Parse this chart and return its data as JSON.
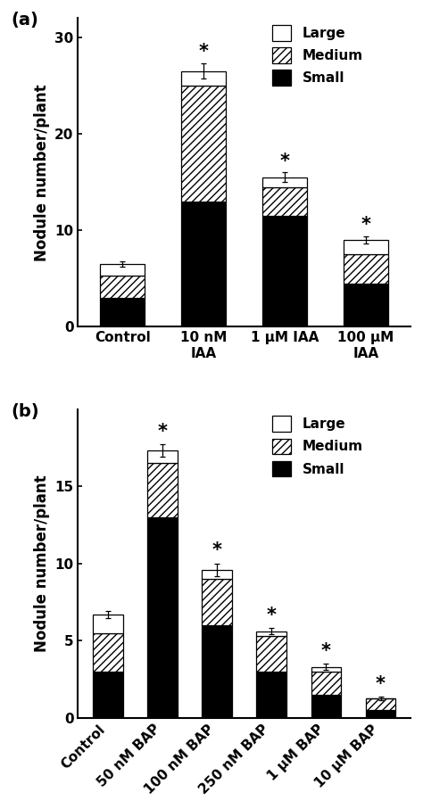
{
  "panel_a": {
    "categories": [
      "Control",
      "10 nM\nIAA",
      "1 μM IAA",
      "100 μM\nIAA"
    ],
    "small": [
      3.0,
      13.0,
      11.5,
      4.5
    ],
    "medium": [
      2.3,
      12.0,
      3.0,
      3.0
    ],
    "large": [
      1.2,
      1.5,
      1.0,
      1.5
    ],
    "errors": [
      0.3,
      0.8,
      0.5,
      0.4
    ],
    "sig": [
      false,
      true,
      true,
      true
    ],
    "ylim": [
      0,
      32
    ],
    "yticks": [
      0,
      10,
      20,
      30
    ],
    "ylabel": "Nodule number/plant"
  },
  "panel_b": {
    "categories": [
      "Control",
      "50 nM BAP",
      "100 nM BAP",
      "250 nM BAP",
      "1 μM BAP",
      "10 μM BAP"
    ],
    "small": [
      3.0,
      13.0,
      6.0,
      3.0,
      1.5,
      0.5
    ],
    "medium": [
      2.5,
      3.5,
      3.0,
      2.3,
      1.5,
      0.75
    ],
    "large": [
      1.2,
      0.8,
      0.6,
      0.3,
      0.3,
      0.0
    ],
    "errors": [
      0.25,
      0.4,
      0.4,
      0.2,
      0.2,
      0.1
    ],
    "sig": [
      false,
      true,
      true,
      true,
      true,
      true
    ],
    "ylim": [
      0,
      20
    ],
    "yticks": [
      0,
      5,
      10,
      15
    ],
    "ylabel": "Nodule number/plant"
  },
  "hatch_medium": "////",
  "bar_width": 0.55,
  "fontsize_label": 12,
  "fontsize_tick": 11,
  "fontsize_legend": 11,
  "fontsize_panel": 14,
  "fontsize_star": 15
}
